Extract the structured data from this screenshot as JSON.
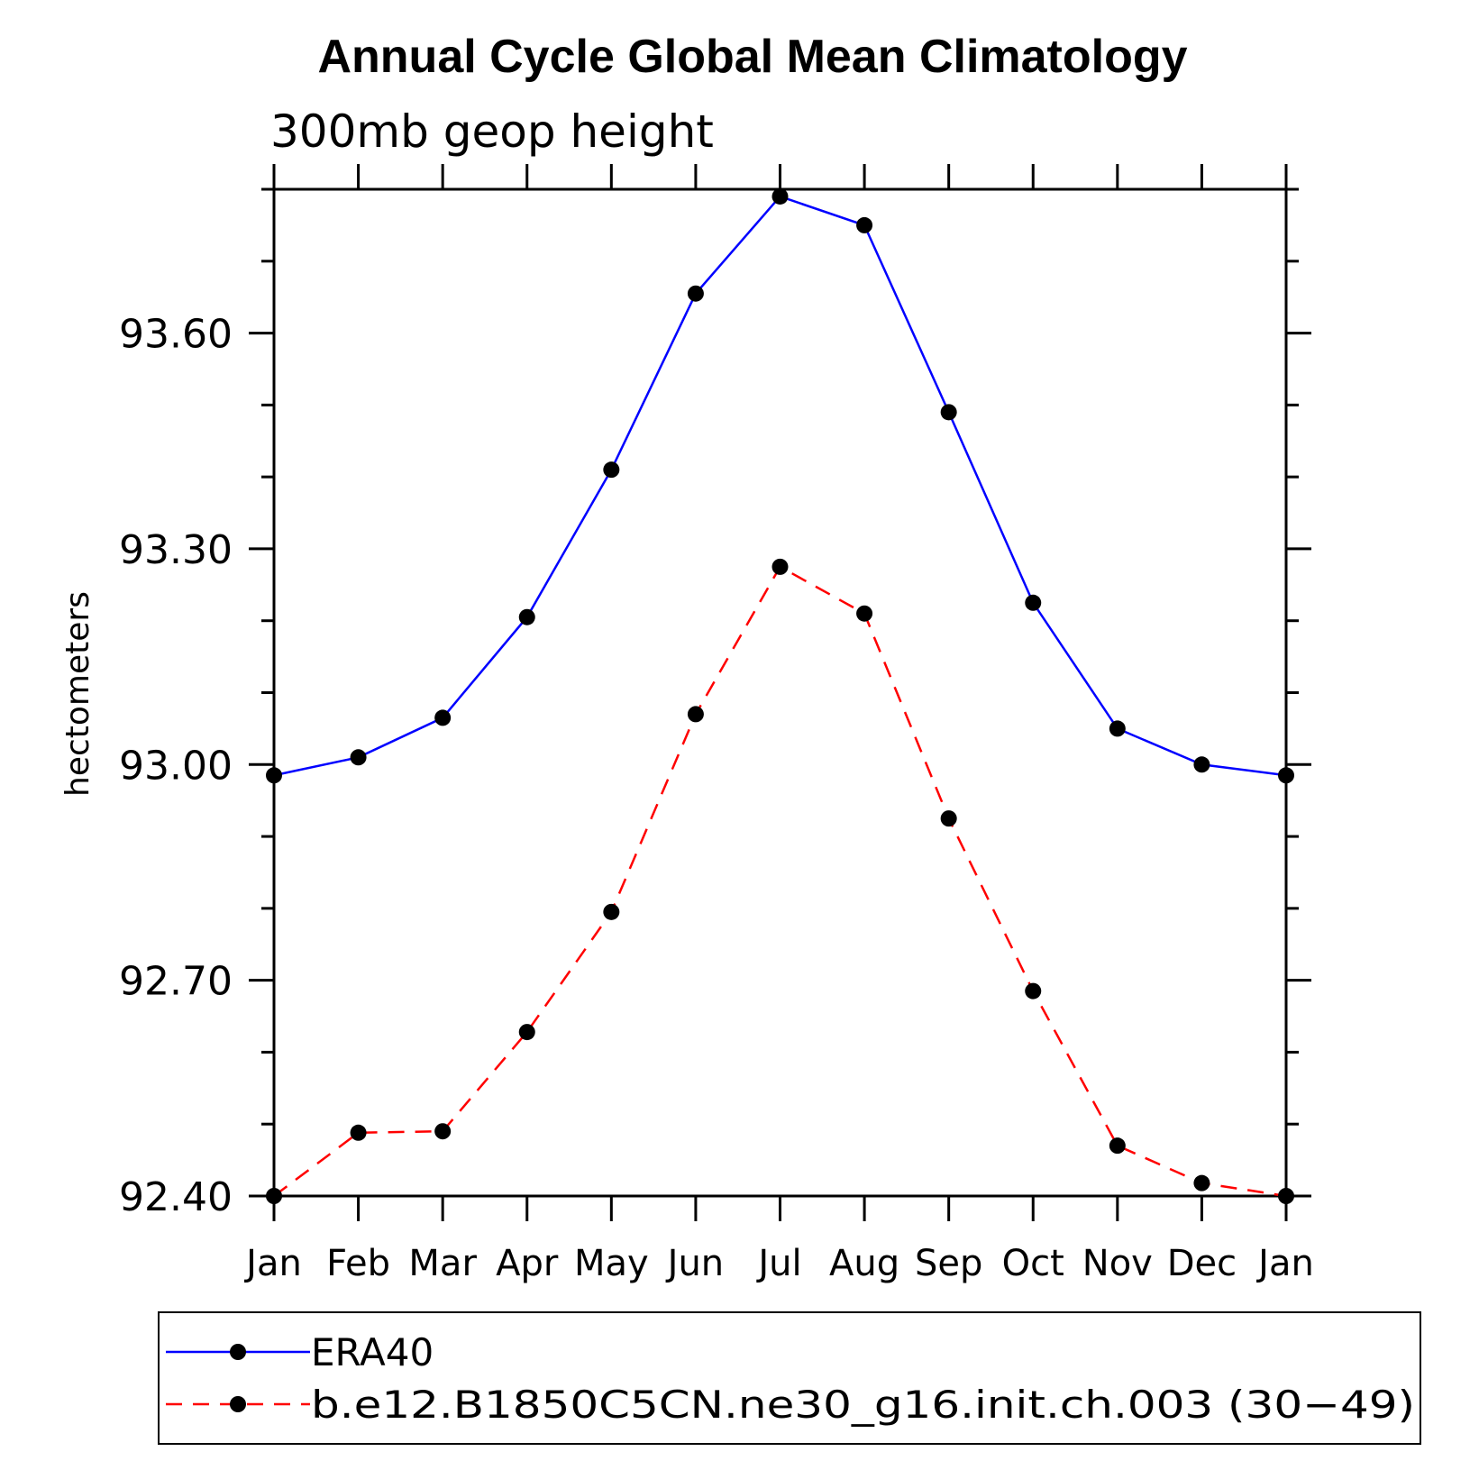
{
  "chart_data": {
    "type": "line",
    "title": "Annual Cycle Global Mean Climatology",
    "subtitle": "300mb geop height",
    "ylabel": "hectometers",
    "xlabel": "",
    "categories": [
      "Jan",
      "Feb",
      "Mar",
      "Apr",
      "May",
      "Jun",
      "Jul",
      "Aug",
      "Sep",
      "Oct",
      "Nov",
      "Dec",
      "Jan"
    ],
    "ylim": [
      92.4,
      93.8
    ],
    "yticks": [
      "92.40",
      "92.70",
      "93.00",
      "93.30",
      "93.60"
    ],
    "ytick_values": [
      92.4,
      92.7,
      93.0,
      93.3,
      93.6
    ],
    "series": [
      {
        "name": "ERA40",
        "color": "#0000ff",
        "dash": "solid",
        "values": [
          92.985,
          93.01,
          93.065,
          93.205,
          93.41,
          93.655,
          93.79,
          93.75,
          93.49,
          93.225,
          93.05,
          93.0,
          92.985
        ]
      },
      {
        "name": "b.e12.B1850C5CN.ne30_g16.init.ch.003 (30−49)",
        "color": "#ff0000",
        "dash": "dashed",
        "values": [
          92.4,
          92.488,
          92.49,
          92.628,
          92.795,
          93.07,
          93.275,
          93.21,
          92.925,
          92.685,
          92.47,
          92.418,
          92.4
        ]
      }
    ],
    "legend_position": "bottom",
    "grid": false
  }
}
